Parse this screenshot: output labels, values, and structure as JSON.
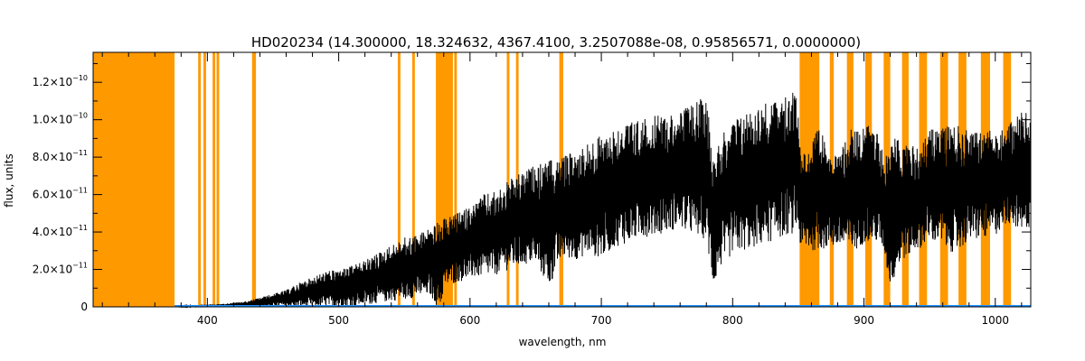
{
  "chart_data": {
    "type": "line",
    "title": "HD020234   (14.300000, 18.324632, 4367.4100, 3.2507088e-08, 0.95856571, 0.0000000)",
    "xlabel": "wavelength, nm",
    "ylabel": "flux, units",
    "xlim": [
      313,
      1027
    ],
    "ylim": [
      0,
      1.36e-10
    ],
    "x_ticks": [
      400,
      500,
      600,
      700,
      800,
      900,
      1000
    ],
    "x_tick_labels": [
      "400",
      "500",
      "600",
      "700",
      "800",
      "900",
      "1000"
    ],
    "y_ticks": [
      0,
      2e-11,
      4e-11,
      6e-11,
      8e-11,
      1e-10,
      1.2e-10
    ],
    "y_tick_labels": [
      {
        "mant": "0",
        "exp": ""
      },
      {
        "mant": "2.0×10",
        "exp": "−11"
      },
      {
        "mant": "4.0×10",
        "exp": "−11"
      },
      {
        "mant": "6.0×10",
        "exp": "−11"
      },
      {
        "mant": "8.0×10",
        "exp": "−11"
      },
      {
        "mant": "1.0×10",
        "exp": "−10"
      },
      {
        "mant": "1.2×10",
        "exp": "−10"
      }
    ],
    "flux_envelope": {
      "x": [
        375,
        390,
        410,
        430,
        445,
        460,
        470,
        480,
        490,
        500,
        510,
        520,
        530,
        540,
        550,
        560,
        570,
        575,
        578,
        580,
        590,
        600,
        610,
        620,
        630,
        640,
        650,
        660,
        670,
        680,
        690,
        700,
        710,
        720,
        730,
        740,
        750,
        760,
        770,
        780,
        785,
        790,
        800,
        810,
        820,
        830,
        840,
        850,
        852,
        865,
        880,
        890,
        900,
        910,
        915,
        920,
        930,
        940,
        950,
        960,
        970,
        980,
        990,
        1000,
        1010,
        1020,
        1027
      ],
      "upper": [
        0,
        1e-12,
        1.5e-12,
        3e-12,
        6e-12,
        9e-12,
        1.3e-11,
        1.6e-11,
        1.9e-11,
        2e-11,
        2.2e-11,
        2.5e-11,
        2.9e-11,
        3.3e-11,
        3.7e-11,
        3.9e-11,
        4.3e-11,
        4.5e-11,
        4.4e-11,
        4.7e-11,
        5e-11,
        5.4e-11,
        6e-11,
        6.2e-11,
        6.8e-11,
        7.2e-11,
        7.6e-11,
        7.8e-11,
        8e-11,
        8.4e-11,
        8.8e-11,
        9.2e-11,
        9.6e-11,
        9.9e-11,
        1e-10,
        1.02e-10,
        1.03e-10,
        1.04e-10,
        1.1e-10,
        1.12e-10,
        8.5e-11,
        9e-11,
        1e-10,
        1.05e-10,
        1.08e-10,
        1.1e-10,
        1.12e-10,
        1.17e-10,
        8e-11,
        9.5e-11,
        8e-11,
        9.5e-11,
        9.8e-11,
        9.5e-11,
        8e-11,
        9e-11,
        9e-11,
        8.5e-11,
        9.5e-11,
        9.8e-11,
        9.7e-11,
        9.5e-11,
        9.3e-11,
        9.6e-11,
        9.8e-11,
        1.05e-10,
        1.02e-10
      ],
      "lower": [
        0,
        0,
        0,
        0,
        0,
        0,
        0,
        0,
        0,
        0,
        0,
        1e-12,
        2e-12,
        3e-12,
        4e-12,
        5e-12,
        6e-12,
        0,
        0,
        1e-11,
        1.3e-11,
        1.5e-11,
        1.6e-11,
        1.7e-11,
        2e-11,
        2.2e-11,
        2.3e-11,
        1e-11,
        2.6e-11,
        2.5e-11,
        2.8e-11,
        2.6e-11,
        3.2e-11,
        3.4e-11,
        3.7e-11,
        3.8e-11,
        4e-11,
        4.2e-11,
        3.8e-11,
        3.6e-11,
        1e-11,
        2e-11,
        2.8e-11,
        3e-11,
        3.2e-11,
        3.5e-11,
        3.8e-11,
        4e-11,
        3e-11,
        3e-11,
        3.2e-11,
        2.8e-11,
        3.4e-11,
        3.4e-11,
        3e-11,
        1e-11,
        2.5e-11,
        3e-11,
        3.5e-11,
        3.2e-11,
        2.8e-11,
        3.5e-11,
        3.6e-11,
        3.8e-11,
        4.5e-11,
        4e-11,
        4.2e-11
      ]
    },
    "error_level": 5e-13,
    "masked_regions_nm": [
      [
        313,
        375
      ],
      [
        393,
        395
      ],
      [
        397,
        399
      ],
      [
        404,
        406
      ],
      [
        407,
        409
      ],
      [
        434,
        437
      ],
      [
        545,
        547
      ],
      [
        556,
        558
      ],
      [
        574,
        587
      ],
      [
        588,
        590
      ],
      [
        628,
        630
      ],
      [
        635,
        637
      ],
      [
        668,
        671
      ],
      [
        851,
        866
      ],
      [
        874,
        877
      ],
      [
        887,
        892
      ],
      [
        901,
        906
      ],
      [
        915,
        920
      ],
      [
        929,
        934
      ],
      [
        942,
        948
      ],
      [
        958,
        964
      ],
      [
        972,
        978
      ],
      [
        989,
        996
      ],
      [
        1006,
        1012
      ]
    ],
    "series": [
      {
        "name": "",
        "color": "#000000"
      },
      {
        "name": "",
        "color": "#1e90ff"
      }
    ],
    "mask_color": "#ff9900",
    "grid": false,
    "legend": "none"
  }
}
